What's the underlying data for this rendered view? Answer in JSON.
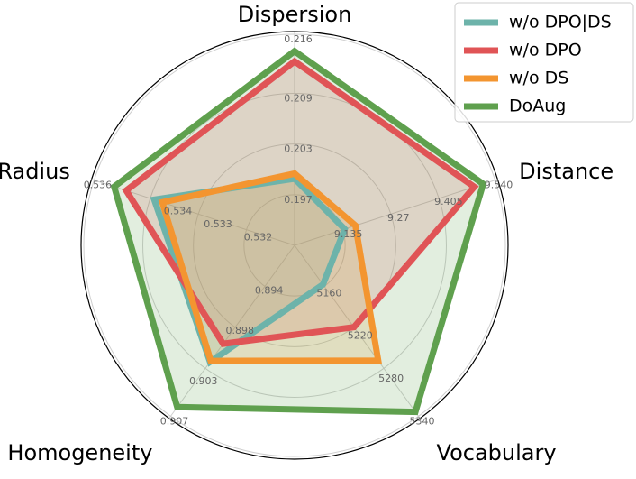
{
  "chart_data": {
    "type": "radar",
    "legend": "upper right",
    "axes": [
      {
        "name": "Dispersion",
        "lim": [
          0.191,
          0.216
        ],
        "ticks": [
          0.197,
          0.203,
          0.209,
          0.216
        ]
      },
      {
        "name": "Distance",
        "lim": [
          9.0,
          9.54
        ],
        "ticks": [
          9.135,
          9.27,
          {
            "value": 9.405,
            "label": "9.405"
          },
          {
            "value": 9.54,
            "label": "9.540"
          }
        ]
      },
      {
        "name": "Vocabulary",
        "lim": [
          5100,
          5340
        ],
        "ticks": [
          5160,
          5220,
          5280,
          5340
        ]
      },
      {
        "name": "Homogeneity",
        "lim": [
          0.89,
          0.907
        ],
        "ticks": [
          0.894,
          0.898,
          0.903,
          0.907
        ]
      },
      {
        "name": "Radius",
        "lim": [
          0.531,
          0.536
        ],
        "ticks": [
          0.532,
          0.533,
          0.534,
          0.536
        ]
      }
    ],
    "series": [
      {
        "name": "w/o DPO|DS",
        "color": "#6db3aa",
        "values": [
          0.1989,
          9.135,
          5155,
          0.9016,
          0.5345
        ]
      },
      {
        "name": "w/o DPO",
        "color": "#e05456",
        "values": [
          0.2128,
          9.484,
          5215,
          0.8998,
          0.5352
        ]
      },
      {
        "name": "w/o DS",
        "color": "#f39530",
        "values": [
          0.1995,
          9.164,
          5262,
          0.9015,
          0.5343
        ]
      },
      {
        "name": "DoAug",
        "color": "#5fa04e",
        "values": [
          0.214,
          9.508,
          5334,
          0.9061,
          0.5355
        ]
      }
    ]
  }
}
